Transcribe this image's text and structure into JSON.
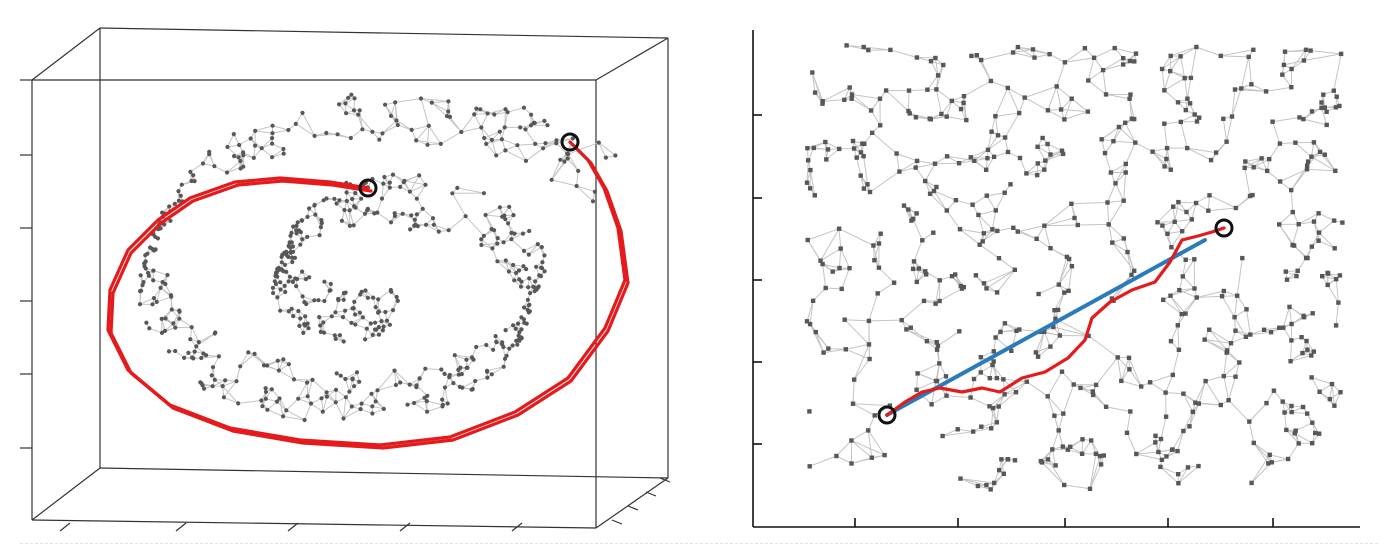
{
  "figure": {
    "panels": [
      {
        "id": "swiss-roll-3d",
        "kind": "3d-scatter-graph",
        "edge_color": "#c4c4c4",
        "node_color": "#575757",
        "path_color": "#e41a1c"
      },
      {
        "id": "unrolled-2d",
        "kind": "2d-scatter-graph",
        "edge_color": "#c4c4c4",
        "node_color": "#575757",
        "geodesic_color": "#e41a1c",
        "straight_line_color": "#2b7bb9"
      }
    ],
    "markers": {
      "endpoint_shape": "open-circle",
      "endpoint_color": "#111111"
    }
  }
}
